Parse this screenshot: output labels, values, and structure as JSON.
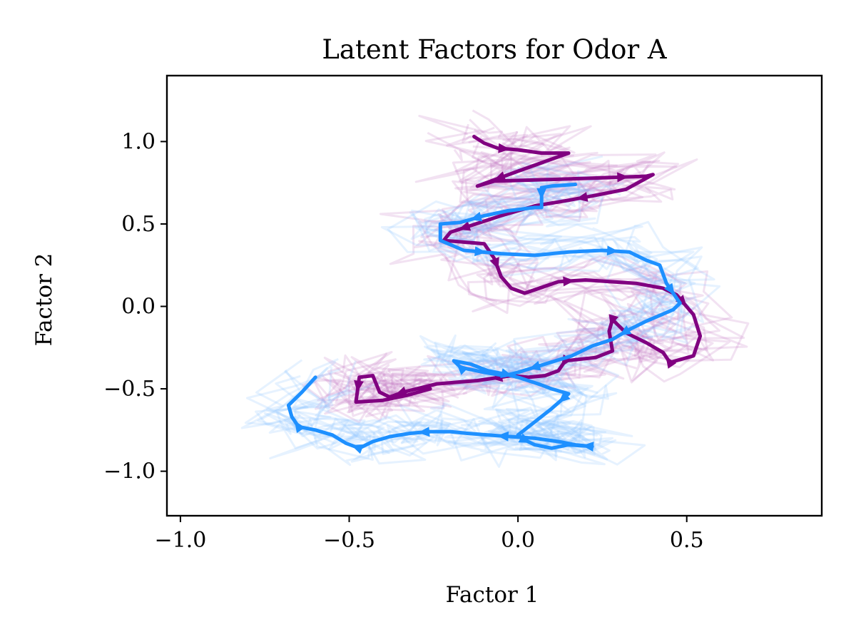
{
  "chart_data": {
    "type": "line",
    "title": "Latent Factors for Odor A",
    "xlabel": "Factor 1",
    "ylabel": "Factor 2",
    "xlim": [
      -1.04,
      0.9
    ],
    "ylim": [
      -1.27,
      1.4
    ],
    "grid": false,
    "x_ticks": [
      -1.0,
      -0.5,
      0.0,
      0.5
    ],
    "x_tick_labels": [
      "−1.0",
      "−0.5",
      "0.0",
      "0.5"
    ],
    "y_ticks": [
      -1.0,
      -0.5,
      0.0,
      0.5,
      1.0
    ],
    "y_tick_labels": [
      "−1.0",
      "−0.5",
      "0.0",
      "0.5",
      "1.0"
    ],
    "colors": {
      "purple": "#800080",
      "blue": "#1E90FF",
      "purple_trials": "#C47DC4",
      "blue_trials": "#8EC6FF"
    },
    "series": [
      {
        "name": "Purple trajectory (mean)",
        "color": "#800080",
        "x": [
          -0.13,
          -0.1,
          -0.06,
          0.0,
          0.07,
          0.15,
          0.0,
          -0.12,
          -0.07,
          0.1,
          0.25,
          0.38,
          0.4,
          0.32,
          0.22,
          0.14,
          0.05,
          -0.05,
          -0.14,
          -0.2,
          -0.22,
          -0.1,
          -0.07,
          -0.05,
          -0.02,
          0.02,
          0.12,
          0.2,
          0.35,
          0.43,
          0.47,
          0.52,
          0.54,
          0.52,
          0.45,
          0.43,
          0.38,
          0.32,
          0.28,
          0.27,
          0.28,
          0.23,
          0.14,
          0.12,
          0.08,
          0.03,
          -0.02,
          -0.12,
          -0.24,
          -0.3,
          -0.34,
          -0.38,
          -0.41,
          -0.43,
          -0.47,
          -0.48,
          -0.4,
          -0.33,
          -0.26
        ],
        "y": [
          1.03,
          0.99,
          0.96,
          0.95,
          0.93,
          0.93,
          0.82,
          0.73,
          0.76,
          0.77,
          0.78,
          0.79,
          0.8,
          0.71,
          0.67,
          0.64,
          0.61,
          0.55,
          0.49,
          0.45,
          0.4,
          0.38,
          0.29,
          0.18,
          0.11,
          0.08,
          0.15,
          0.16,
          0.14,
          0.11,
          0.07,
          -0.05,
          -0.18,
          -0.3,
          -0.34,
          -0.28,
          -0.22,
          -0.16,
          -0.08,
          -0.15,
          -0.27,
          -0.31,
          -0.33,
          -0.39,
          -0.42,
          -0.43,
          -0.42,
          -0.45,
          -0.47,
          -0.5,
          -0.52,
          -0.55,
          -0.52,
          -0.42,
          -0.43,
          -0.58,
          -0.57,
          -0.54,
          -0.5
        ]
      },
      {
        "name": "Blue trajectory (mean)",
        "color": "#1E90FF",
        "x": [
          0.17,
          0.1,
          0.07,
          0.07,
          0.05,
          -0.03,
          -0.1,
          -0.17,
          -0.23,
          -0.23,
          -0.16,
          -0.05,
          0.05,
          0.15,
          0.25,
          0.33,
          0.38,
          0.42,
          0.44,
          0.48,
          0.46,
          0.38,
          0.33,
          0.28,
          0.22,
          0.16,
          0.08,
          0.0,
          -0.04,
          -0.1,
          -0.17,
          -0.19,
          -0.14,
          -0.09,
          -0.04,
          0.0,
          0.06,
          0.1,
          0.15,
          0.1,
          0.05,
          0.0,
          0.02,
          0.05,
          0.1,
          0.15,
          0.22,
          0.17,
          0.12,
          0.05,
          -0.02,
          -0.09,
          -0.15,
          -0.2,
          -0.26,
          -0.32,
          -0.38,
          -0.43,
          -0.47,
          -0.51,
          -0.55,
          -0.6,
          -0.65,
          -0.67,
          -0.68,
          -0.64,
          -0.6
        ],
        "y": [
          0.74,
          0.73,
          0.72,
          0.6,
          0.6,
          0.58,
          0.55,
          0.51,
          0.5,
          0.4,
          0.34,
          0.32,
          0.31,
          0.33,
          0.34,
          0.33,
          0.28,
          0.25,
          0.14,
          0.02,
          -0.02,
          -0.09,
          -0.14,
          -0.2,
          -0.24,
          -0.3,
          -0.35,
          -0.4,
          -0.42,
          -0.4,
          -0.37,
          -0.33,
          -0.35,
          -0.39,
          -0.41,
          -0.43,
          -0.47,
          -0.5,
          -0.53,
          -0.62,
          -0.7,
          -0.78,
          -0.81,
          -0.84,
          -0.86,
          -0.84,
          -0.85,
          -0.84,
          -0.82,
          -0.8,
          -0.79,
          -0.78,
          -0.77,
          -0.76,
          -0.76,
          -0.77,
          -0.79,
          -0.82,
          -0.86,
          -0.83,
          -0.78,
          -0.75,
          -0.73,
          -0.67,
          -0.6,
          -0.52,
          -0.43
        ]
      }
    ],
    "background_trials": {
      "description": "many faint single-trial trajectories scattered around each mean trajectory",
      "count_per_color": 14,
      "colors": [
        "#C47DC4",
        "#8EC6FF"
      ]
    }
  }
}
